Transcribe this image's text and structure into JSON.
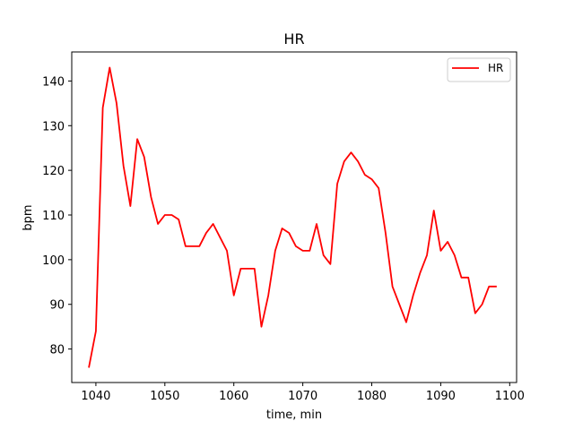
{
  "chart_data": {
    "type": "line",
    "title": "HR",
    "xlabel": "time, min",
    "ylabel": "bpm",
    "xlim": [
      1036.5,
      1101
    ],
    "ylim": [
      72.5,
      146.5
    ],
    "xticks": [
      1040,
      1050,
      1060,
      1070,
      1080,
      1090,
      1100
    ],
    "yticks": [
      80,
      90,
      100,
      110,
      120,
      130,
      140
    ],
    "grid": false,
    "legend": {
      "position": "top-right",
      "entries": [
        "HR"
      ]
    },
    "series": [
      {
        "name": "HR",
        "color": "#ff0000",
        "x": [
          1039,
          1040,
          1041,
          1042,
          1043,
          1044,
          1045,
          1046,
          1047,
          1048,
          1049,
          1050,
          1051,
          1052,
          1053,
          1054,
          1055,
          1056,
          1057,
          1058,
          1059,
          1060,
          1061,
          1062,
          1063,
          1064,
          1065,
          1066,
          1067,
          1068,
          1069,
          1070,
          1071,
          1072,
          1073,
          1074,
          1075,
          1076,
          1077,
          1078,
          1079,
          1080,
          1081,
          1082,
          1083,
          1084,
          1085,
          1086,
          1087,
          1088,
          1089,
          1090,
          1091,
          1092,
          1093,
          1094,
          1095,
          1096,
          1097,
          1098
        ],
        "y": [
          76,
          84,
          134,
          143,
          135,
          121,
          112,
          127,
          123,
          114,
          108,
          110,
          110,
          109,
          103,
          103,
          103,
          106,
          108,
          105,
          102,
          92,
          98,
          98,
          98,
          85,
          92,
          102,
          107,
          106,
          103,
          102,
          102,
          108,
          101,
          99,
          117,
          122,
          124,
          122,
          119,
          118,
          116,
          106,
          94,
          90,
          86,
          92,
          97,
          101,
          111,
          102,
          104,
          101,
          96,
          96,
          88,
          90,
          94,
          94
        ]
      }
    ]
  }
}
